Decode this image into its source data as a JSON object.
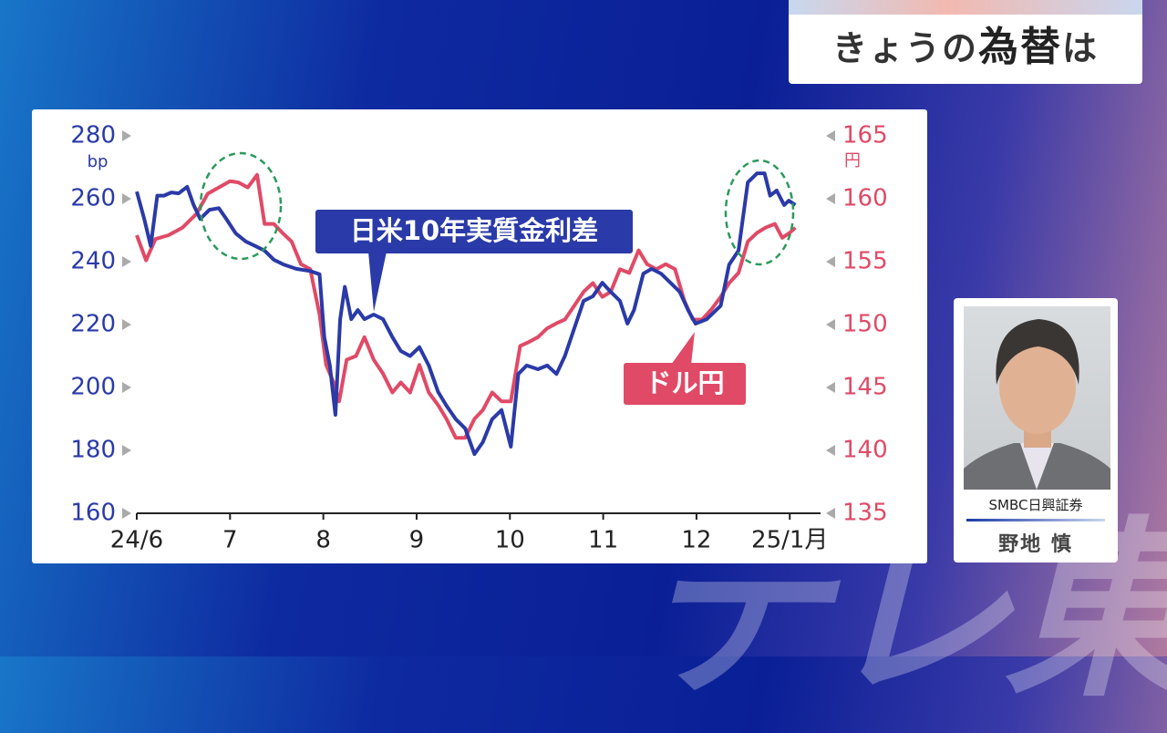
{
  "header": {
    "title": [
      "きょうの",
      "為替",
      "は"
    ]
  },
  "speaker": {
    "organization": "SMBC日興証券",
    "name": "野地 慎"
  },
  "watermark": "テレ東",
  "chart_data": {
    "type": "line",
    "ylabel": "bp",
    "y2label": "円",
    "xlim": [
      6,
      13.33
    ],
    "xticks": [
      {
        "value": 6,
        "label": "24/6"
      },
      7,
      8,
      9,
      10,
      11,
      12,
      {
        "value": 13,
        "label": "25/1月"
      }
    ],
    "ylim": [
      160,
      280
    ],
    "yticks": [
      160,
      180,
      200,
      220,
      240,
      260,
      280
    ],
    "y2lim": [
      135,
      165
    ],
    "y2ticks": [
      135,
      140,
      145,
      150,
      155,
      160,
      165
    ],
    "series": [
      {
        "name": "日米10年実質金利差",
        "color": "#2a3aa8",
        "axis": "y",
        "x": [
          6.0,
          6.08,
          6.15,
          6.22,
          6.29,
          6.37,
          6.45,
          6.54,
          6.61,
          6.68,
          6.78,
          6.88,
          6.96,
          7.06,
          7.17,
          7.27,
          7.37,
          7.47,
          7.58,
          7.71,
          7.86,
          7.96,
          8.01,
          8.07,
          8.13,
          8.18,
          8.23,
          8.3,
          8.37,
          8.44,
          8.54,
          8.64,
          8.74,
          8.83,
          8.93,
          9.03,
          9.13,
          9.23,
          9.32,
          9.42,
          9.52,
          9.62,
          9.71,
          9.81,
          9.91,
          10.01,
          10.09,
          10.18,
          10.3,
          10.4,
          10.5,
          10.59,
          10.69,
          10.79,
          10.89,
          10.99,
          11.08,
          11.18,
          11.26,
          11.33,
          11.43,
          11.52,
          11.62,
          11.72,
          11.82,
          11.91,
          11.99,
          12.11,
          12.26,
          12.35,
          12.45,
          12.55,
          12.65,
          12.73,
          12.79,
          12.86,
          12.94,
          12.99,
          13.06
        ],
        "values": [
          262.3,
          253.6,
          245,
          261,
          261,
          262,
          261.7,
          263.8,
          258,
          253.6,
          256.5,
          257,
          253.6,
          249,
          246.4,
          245,
          243.5,
          240.6,
          239,
          237.7,
          237,
          236,
          216,
          207,
          191.3,
          221.7,
          232,
          221.7,
          224.6,
          221.7,
          223.2,
          221.7,
          216,
          211.6,
          210,
          212.8,
          207,
          198.6,
          194.2,
          189.9,
          187,
          178.8,
          182.6,
          189.9,
          192.8,
          181.2,
          204.3,
          207,
          205.8,
          207,
          204.3,
          210,
          218.8,
          227.5,
          229,
          233.3,
          230.4,
          227.5,
          220.3,
          224.6,
          236.2,
          237.7,
          236.2,
          233.3,
          230.4,
          224.6,
          220.3,
          221.7,
          226,
          239,
          243.5,
          265.2,
          268.1,
          268.1,
          261,
          262.6,
          258,
          259.4,
          258
        ]
      },
      {
        "name": "ドル円",
        "color": "#e04a66",
        "axis": "y2",
        "x": [
          6.0,
          6.1,
          6.2,
          6.34,
          6.49,
          6.64,
          6.76,
          6.88,
          7.0,
          7.09,
          7.19,
          7.29,
          7.37,
          7.47,
          7.56,
          7.66,
          7.76,
          7.86,
          7.96,
          8.03,
          8.11,
          8.17,
          8.25,
          8.35,
          8.44,
          8.54,
          8.64,
          8.74,
          8.83,
          8.93,
          9.03,
          9.13,
          9.23,
          9.32,
          9.42,
          9.52,
          9.62,
          9.71,
          9.81,
          9.91,
          10.01,
          10.11,
          10.2,
          10.3,
          10.4,
          10.5,
          10.59,
          10.69,
          10.79,
          10.89,
          10.99,
          11.08,
          11.18,
          11.28,
          11.38,
          11.47,
          11.57,
          11.67,
          11.77,
          11.87,
          11.96,
          12.06,
          12.16,
          12.26,
          12.35,
          12.45,
          12.55,
          12.65,
          12.74,
          12.84,
          12.92,
          13.0,
          13.06
        ],
        "values": [
          157.1,
          155.1,
          156.8,
          157.1,
          157.7,
          158.8,
          160.4,
          160.9,
          161.4,
          161.3,
          160.9,
          161.9,
          158,
          158,
          157.3,
          156.6,
          154.8,
          154.4,
          150.8,
          146.8,
          145.4,
          143.9,
          147.2,
          147.5,
          149,
          147.2,
          146.1,
          144.6,
          145.4,
          144.6,
          146.8,
          144.6,
          143.6,
          142.5,
          141,
          141,
          142.5,
          143.2,
          144.6,
          143.9,
          143.9,
          148.3,
          148.6,
          149,
          149.7,
          150.1,
          150.4,
          151.5,
          152.6,
          153.3,
          152.2,
          152.6,
          154.4,
          154.1,
          155.9,
          154.8,
          154.4,
          154.8,
          154.4,
          151.9,
          150.4,
          150.4,
          151.2,
          152.2,
          153.3,
          154.1,
          156.6,
          157.3,
          157.7,
          158,
          156.9,
          157.3,
          157.7
        ]
      }
    ]
  }
}
